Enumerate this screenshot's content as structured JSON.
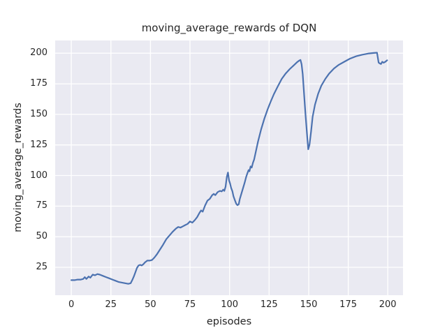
{
  "chart_data": {
    "type": "line",
    "title": "moving_average_rewards of DQN",
    "xlabel": "episodes",
    "ylabel": "moving_average_rewards",
    "x_ticks": [
      0,
      25,
      50,
      75,
      100,
      125,
      150,
      175,
      200
    ],
    "y_ticks": [
      25,
      50,
      75,
      100,
      125,
      150,
      175,
      200
    ],
    "xlim": [
      -10.2,
      209.6
    ],
    "ylim": [
      2.2,
      210.4
    ],
    "grid": true,
    "legend_position": "none",
    "style": "seaborn-darkgrid",
    "colors": {
      "line": "#4c72b0",
      "axes_bg": "#eaeaf2",
      "grid": "#ffffff",
      "text": "#262626",
      "figure_bg": "#ffffff"
    },
    "series": [
      {
        "name": "moving_average_rewards",
        "points": [
          [
            0,
            14.5
          ],
          [
            2,
            14.5
          ],
          [
            4,
            15
          ],
          [
            6,
            15
          ],
          [
            7.5,
            15.5
          ],
          [
            8.5,
            17
          ],
          [
            9.5,
            15.5
          ],
          [
            11,
            17.5
          ],
          [
            12,
            16.5
          ],
          [
            13.5,
            19
          ],
          [
            15,
            18.5
          ],
          [
            16.5,
            19.5
          ],
          [
            18,
            19
          ],
          [
            20,
            18
          ],
          [
            22,
            17
          ],
          [
            24,
            16
          ],
          [
            26,
            15
          ],
          [
            28,
            14
          ],
          [
            30,
            13
          ],
          [
            32,
            12.5
          ],
          [
            34,
            12
          ],
          [
            36,
            11.5
          ],
          [
            37.5,
            12
          ],
          [
            38.5,
            14.5
          ],
          [
            39.5,
            17.5
          ],
          [
            40.5,
            21
          ],
          [
            41.5,
            24.5
          ],
          [
            42.5,
            26.5
          ],
          [
            43.5,
            27
          ],
          [
            44.5,
            26.5
          ],
          [
            45.5,
            27.5
          ],
          [
            46.5,
            29
          ],
          [
            48,
            30.5
          ],
          [
            49.5,
            30.5
          ],
          [
            51,
            31
          ],
          [
            52.5,
            33
          ],
          [
            54,
            35.5
          ],
          [
            56,
            39.5
          ],
          [
            58,
            43.5
          ],
          [
            60,
            48
          ],
          [
            62,
            51
          ],
          [
            64,
            54
          ],
          [
            66,
            56.5
          ],
          [
            67.5,
            58
          ],
          [
            69,
            57.5
          ],
          [
            70.5,
            58.5
          ],
          [
            72,
            59.5
          ],
          [
            73.5,
            60.5
          ],
          [
            75,
            62.5
          ],
          [
            76.5,
            61.5
          ],
          [
            78,
            63.5
          ],
          [
            79.5,
            66
          ],
          [
            81,
            69.5
          ],
          [
            82,
            71.5
          ],
          [
            83,
            70.5
          ],
          [
            84.5,
            75.5
          ],
          [
            86,
            79.5
          ],
          [
            87.5,
            81
          ],
          [
            89,
            84
          ],
          [
            90,
            85
          ],
          [
            91,
            84
          ],
          [
            92.5,
            86.5
          ],
          [
            94,
            87.5
          ],
          [
            95,
            87
          ],
          [
            96,
            88.5
          ],
          [
            96.7,
            87.5
          ],
          [
            97.5,
            91
          ],
          [
            98.3,
            99
          ],
          [
            99,
            102.5
          ],
          [
            99.7,
            96
          ],
          [
            100.3,
            93.5
          ],
          [
            101,
            90
          ],
          [
            101.8,
            87
          ],
          [
            102.5,
            83
          ],
          [
            103.3,
            80
          ],
          [
            104.2,
            77
          ],
          [
            105,
            75.8
          ],
          [
            105.8,
            76.5
          ],
          [
            106.5,
            81
          ],
          [
            108,
            87.5
          ],
          [
            109.5,
            94
          ],
          [
            110.5,
            99
          ],
          [
            111.3,
            102
          ],
          [
            112,
            104.5
          ],
          [
            112.6,
            103.5
          ],
          [
            113.3,
            107.5
          ],
          [
            114,
            106.5
          ],
          [
            114.8,
            110.5
          ],
          [
            115.5,
            113
          ],
          [
            116.5,
            119
          ],
          [
            118,
            128
          ],
          [
            120,
            138
          ],
          [
            122,
            146.5
          ],
          [
            124,
            154
          ],
          [
            126,
            160.5
          ],
          [
            128,
            166.5
          ],
          [
            130.5,
            173
          ],
          [
            133,
            179
          ],
          [
            135.5,
            183.5
          ],
          [
            138,
            187
          ],
          [
            140.5,
            190
          ],
          [
            142.5,
            192.5
          ],
          [
            144,
            194
          ],
          [
            144.8,
            194.5
          ],
          [
            145.5,
            191
          ],
          [
            146.2,
            183
          ],
          [
            147,
            168
          ],
          [
            148,
            150
          ],
          [
            149,
            133
          ],
          [
            149.7,
            121.5
          ],
          [
            150.5,
            125
          ],
          [
            151.5,
            136
          ],
          [
            152.5,
            148
          ],
          [
            154,
            158
          ],
          [
            156,
            167
          ],
          [
            158,
            173.5
          ],
          [
            160.5,
            179
          ],
          [
            163,
            183.5
          ],
          [
            166,
            187.5
          ],
          [
            169,
            190.5
          ],
          [
            172.5,
            193
          ],
          [
            176,
            195.5
          ],
          [
            180,
            197.5
          ],
          [
            184,
            198.8
          ],
          [
            188,
            199.8
          ],
          [
            191,
            200.2
          ],
          [
            193.2,
            200.4
          ],
          [
            194.2,
            192.3
          ],
          [
            195,
            191.6
          ],
          [
            195.7,
            191.2
          ],
          [
            196.5,
            193
          ],
          [
            197.3,
            192.2
          ],
          [
            198.2,
            192.8
          ],
          [
            199.2,
            193.8
          ],
          [
            199.6,
            194.2
          ]
        ]
      }
    ]
  }
}
